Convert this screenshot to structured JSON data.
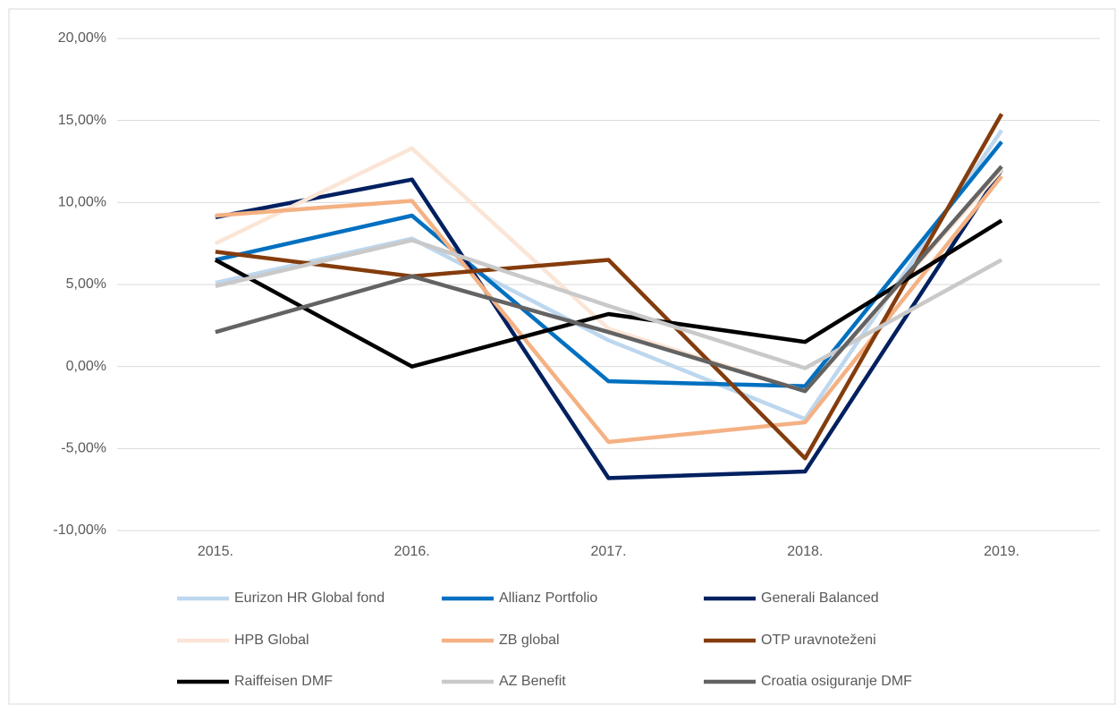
{
  "chart_data": {
    "type": "line",
    "categories": [
      "2015.",
      "2016.",
      "2017.",
      "2018.",
      "2019."
    ],
    "ylim": [
      -10,
      20
    ],
    "yticks": [
      {
        "value": -10,
        "label": "-10,00%"
      },
      {
        "value": -5,
        "label": "-5,00%"
      },
      {
        "value": 0,
        "label": "0,00%"
      },
      {
        "value": 5,
        "label": "5,00%"
      },
      {
        "value": 10,
        "label": "10,00%"
      },
      {
        "value": 15,
        "label": "15,00%"
      },
      {
        "value": 20,
        "label": "20,00%"
      }
    ],
    "grid": true,
    "legend": "bottom",
    "series": [
      {
        "name": "Eurizon HR Global fond",
        "color": "#bdd7ee",
        "values": [
          5.1,
          7.8,
          1.6,
          -3.2,
          14.4
        ]
      },
      {
        "name": "Allianz Portfolio",
        "color": "#0070c0",
        "values": [
          6.5,
          9.2,
          -0.9,
          -1.2,
          13.7
        ]
      },
      {
        "name": "Generali Balanced",
        "color": "#002060",
        "values": [
          9.1,
          11.4,
          -6.8,
          -6.4,
          12.0
        ]
      },
      {
        "name": "HPB Global",
        "color": "#fbe5d6",
        "values": [
          7.5,
          13.3,
          2.3,
          -1.5,
          12.0
        ]
      },
      {
        "name": "ZB global",
        "color": "#f4b183",
        "values": [
          9.2,
          10.1,
          -4.6,
          -3.4,
          11.6
        ]
      },
      {
        "name": "OTP uravnoteženi",
        "color": "#843c0c",
        "values": [
          7.0,
          5.5,
          6.5,
          -5.6,
          15.4
        ]
      },
      {
        "name": "Raiffeisen DMF",
        "color": "#000000",
        "values": [
          6.5,
          0.0,
          3.2,
          1.5,
          8.9
        ]
      },
      {
        "name": "AZ Benefit",
        "color": "#c9c9c9",
        "values": [
          4.9,
          7.7,
          3.7,
          -0.1,
          6.5
        ]
      },
      {
        "name": "Croatia osiguranje DMF",
        "color": "#636363",
        "values": [
          2.1,
          5.5,
          2.1,
          -1.5,
          12.2
        ]
      }
    ]
  }
}
